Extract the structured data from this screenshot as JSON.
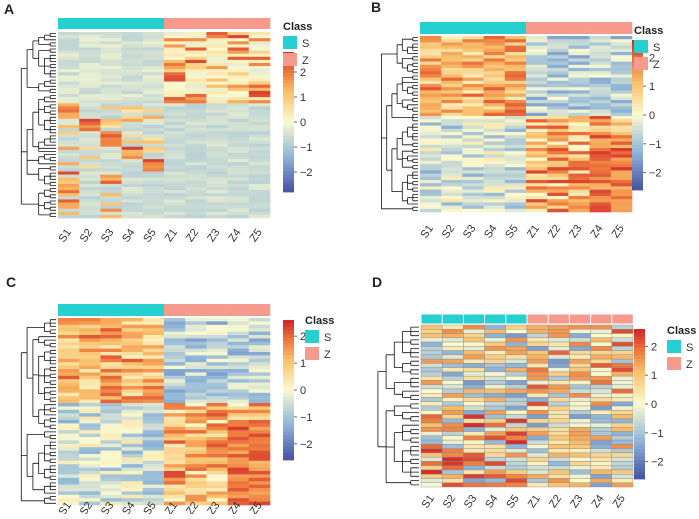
{
  "figure": {
    "panels_label": "Four clustered heatmaps (A-D) of samples S1-S5 and Z1-Z5"
  },
  "colors": {
    "class_S": "#24d0d0",
    "class_Z": "#f59a8c",
    "scale_low": "#4a56a6",
    "scale_mid": "#fbfad0",
    "scale_high": "#d12b2b",
    "dendrogram": "#111111"
  },
  "chart_data": [
    {
      "type": "heatmap",
      "panel_label": "A",
      "columns": [
        "S1",
        "S2",
        "S3",
        "S4",
        "S5",
        "Z1",
        "Z2",
        "Z3",
        "Z4",
        "Z5"
      ],
      "column_class": [
        "S",
        "S",
        "S",
        "S",
        "S",
        "Z",
        "Z",
        "Z",
        "Z",
        "Z"
      ],
      "legend_title": "Class",
      "legend_entries": [
        "S",
        "Z"
      ],
      "scale_ticks": [
        2,
        1,
        0,
        -1,
        -2
      ],
      "scale_range": [
        -2.8,
        2.8
      ],
      "row_count": 60,
      "cell_borders": false,
      "pattern": "blocky"
    },
    {
      "type": "heatmap",
      "panel_label": "B",
      "columns": [
        "S1",
        "S2",
        "S3",
        "S4",
        "S5",
        "Z1",
        "Z2",
        "Z3",
        "Z4",
        "Z5"
      ],
      "column_class": [
        "S",
        "S",
        "S",
        "S",
        "S",
        "Z",
        "Z",
        "Z",
        "Z",
        "Z"
      ],
      "legend_title": "Class",
      "legend_entries": [
        "S",
        "Z"
      ],
      "scale_ticks": [
        2,
        1,
        0,
        -1,
        -2
      ],
      "scale_range": [
        -2.6,
        2.6
      ],
      "row_count": 55,
      "cell_borders": false,
      "pattern": "upper-S-lower-Z"
    },
    {
      "type": "heatmap",
      "panel_label": "C",
      "columns": [
        "S1",
        "S2",
        "S3",
        "S4",
        "S5",
        "Z1",
        "Z2",
        "Z3",
        "Z4",
        "Z5"
      ],
      "column_class": [
        "S",
        "S",
        "S",
        "S",
        "S",
        "Z",
        "Z",
        "Z",
        "Z",
        "Z"
      ],
      "legend_title": "Class",
      "legend_entries": [
        "S",
        "Z"
      ],
      "scale_ticks": [
        2,
        1,
        0,
        -1,
        -2
      ],
      "scale_range": [
        -2.6,
        2.6
      ],
      "row_count": 55,
      "cell_borders": false,
      "pattern": "upper-S-lower-Z"
    },
    {
      "type": "heatmap",
      "panel_label": "D",
      "columns": [
        "S1",
        "S2",
        "S3",
        "S4",
        "S5",
        "Z1",
        "Z2",
        "Z3",
        "Z4",
        "Z5"
      ],
      "column_class": [
        "S",
        "S",
        "S",
        "S",
        "S",
        "Z",
        "Z",
        "Z",
        "Z",
        "Z"
      ],
      "legend_title": "Class",
      "legend_entries": [
        "S",
        "Z"
      ],
      "scale_ticks": [
        2,
        1,
        0,
        -1,
        -2
      ],
      "scale_range": [
        -2.6,
        2.6
      ],
      "row_count": 38,
      "cell_borders": true,
      "pattern": "mixed"
    }
  ]
}
